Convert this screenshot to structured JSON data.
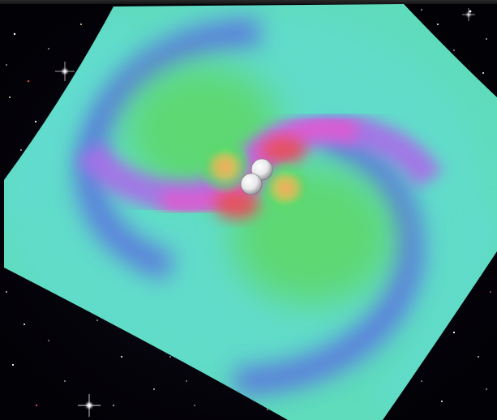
{
  "scene": {
    "background_color": "#05040a",
    "field_colors": {
      "base": "#5fdcbc",
      "cyan": "#63dcd6",
      "blue": "#5a6be0",
      "violet": "#a86ee8",
      "magenta": "#e05ad0",
      "red": "#e8505a",
      "green": "#5dd86a",
      "yellow": "#f0c060",
      "orange": "#ec9a5c"
    },
    "objects": [
      "binary-black-hole-simulation",
      "black-hole-sphere-1",
      "black-hole-sphere-2",
      "gravitational-wave-spiral-field",
      "star-field"
    ]
  }
}
